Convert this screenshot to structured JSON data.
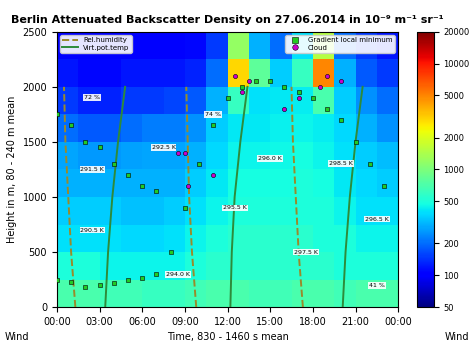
{
  "chart_data": {
    "type": "heatmap",
    "title": "Berlin Attenuated Backscatter Density on 27.06.2014 in 10⁻⁹ m⁻¹ sr⁻¹",
    "x_label": "Time, 830 - 1460 s mean",
    "y_label": "Height in m, 80 - 240 m mean",
    "xlim": [
      0,
      24
    ],
    "ylim": [
      0,
      2500
    ],
    "xticks": [
      {
        "value": 0,
        "label": "00:00"
      },
      {
        "value": 3,
        "label": "03:00"
      },
      {
        "value": 6,
        "label": "06:00"
      },
      {
        "value": 9,
        "label": "09:00"
      },
      {
        "value": 12,
        "label": "12:00"
      },
      {
        "value": 15,
        "label": "15:00"
      },
      {
        "value": 18,
        "label": "18:00"
      },
      {
        "value": 21,
        "label": "21:00"
      },
      {
        "value": 24,
        "label": "00:00"
      }
    ],
    "yticks": [
      0,
      500,
      1000,
      1500,
      2000,
      2500
    ],
    "x_edges": [
      0,
      1.5,
      3,
      4.5,
      6,
      7.5,
      9,
      10.5,
      12,
      13.5,
      15,
      16.5,
      18,
      19.5,
      21,
      22.5,
      24
    ],
    "y_edges": [
      0,
      250,
      500,
      750,
      1000,
      1250,
      1500,
      1750,
      2000,
      2250,
      2500
    ],
    "cells": [
      [
        700,
        700,
        650,
        650,
        600,
        600,
        650,
        700,
        700,
        650,
        650,
        700,
        700,
        650,
        700,
        700
      ],
      [
        500,
        500,
        450,
        450,
        450,
        450,
        500,
        550,
        550,
        550,
        550,
        550,
        550,
        500,
        500,
        500
      ],
      [
        400,
        400,
        400,
        380,
        380,
        400,
        450,
        500,
        550,
        550,
        550,
        550,
        500,
        500,
        450,
        450
      ],
      [
        350,
        350,
        350,
        330,
        330,
        350,
        400,
        450,
        500,
        500,
        500,
        500,
        500,
        450,
        400,
        400
      ],
      [
        300,
        300,
        300,
        300,
        300,
        300,
        350,
        420,
        480,
        480,
        480,
        500,
        480,
        420,
        380,
        350
      ],
      [
        280,
        260,
        260,
        270,
        280,
        280,
        300,
        380,
        450,
        450,
        460,
        480,
        450,
        400,
        350,
        320
      ],
      [
        200,
        180,
        180,
        200,
        220,
        220,
        250,
        350,
        420,
        420,
        440,
        450,
        430,
        380,
        300,
        250
      ],
      [
        150,
        130,
        130,
        150,
        150,
        160,
        180,
        300,
        600,
        400,
        420,
        430,
        700,
        350,
        250,
        200
      ],
      [
        120,
        110,
        110,
        120,
        120,
        120,
        130,
        200,
        3000,
        800,
        350,
        600,
        5000,
        300,
        180,
        150
      ],
      [
        100,
        100,
        100,
        100,
        100,
        100,
        110,
        150,
        1200,
        300,
        200,
        400,
        1500,
        200,
        150,
        120
      ]
    ],
    "colorbar": {
      "range": [
        50,
        20000
      ],
      "ticks": [
        50,
        100,
        200,
        500,
        1000,
        2000,
        5000,
        10000,
        20000
      ],
      "log": true
    },
    "series": [
      {
        "name": "Rel.humidity",
        "type": "line",
        "color": "#9a8a2a",
        "line_style": "dashed",
        "marker": "none",
        "legend": "upper left",
        "x": [
          1.3,
          1.0,
          0.8,
          0.6,
          0.5,
          null,
          9.8,
          9.5,
          9.3,
          9.2,
          9.1,
          null,
          17.3,
          17.0,
          16.8,
          16.6,
          16.5
        ],
        "y": [
          0,
          500,
          1000,
          1500,
          2000,
          null,
          0,
          500,
          1000,
          1500,
          2000,
          null,
          0,
          500,
          1000,
          1500,
          2000
        ]
      },
      {
        "name": "Virt.pot.temp",
        "type": "line",
        "color": "#2e8b3a",
        "line_style": "solid",
        "marker": "none",
        "legend": "upper left",
        "x": [
          3.4,
          3.6,
          3.9,
          4.3,
          4.8,
          null,
          12.2,
          12.3,
          12.5,
          12.9,
          13.4,
          null,
          20.1,
          20.3,
          20.6,
          21.0,
          21.5
        ],
        "y": [
          0,
          500,
          1000,
          1500,
          2000,
          null,
          0,
          500,
          1000,
          1500,
          2000,
          null,
          0,
          500,
          1000,
          1500,
          2000
        ]
      },
      {
        "name": "Gradient local minimum",
        "type": "scatter",
        "color": "#22cc22",
        "line_style": "none",
        "marker": "square",
        "legend": "upper right",
        "x": [
          0,
          1,
          2,
          3,
          4,
          5,
          6,
          7,
          8,
          9,
          10,
          11,
          12,
          13,
          14,
          15,
          16,
          17,
          18,
          19,
          20,
          21,
          22,
          23,
          null,
          0,
          1,
          2,
          3,
          4,
          5,
          6,
          7
        ],
        "y": [
          250,
          230,
          180,
          200,
          220,
          250,
          260,
          300,
          500,
          900,
          1300,
          1650,
          1900,
          2000,
          2050,
          2050,
          2000,
          1950,
          1900,
          1800,
          1700,
          1500,
          1300,
          1100,
          null,
          1750,
          1650,
          1500,
          1450,
          1300,
          1200,
          1100,
          1050
        ]
      },
      {
        "name": "Cloud",
        "type": "scatter",
        "color": "#cc00cc",
        "line_style": "none",
        "marker": "circle",
        "legend": "upper right",
        "x": [
          8.5,
          9,
          9.2,
          11,
          12.5,
          13,
          13.5,
          16,
          17,
          18.5,
          19,
          20
        ],
        "y": [
          1400,
          1400,
          1100,
          1200,
          2100,
          1950,
          2050,
          1800,
          1900,
          2000,
          2100,
          2050
        ]
      }
    ],
    "annotations": [
      {
        "x": 2.5,
        "y": 1250,
        "text": "291.5 K"
      },
      {
        "x": 2.5,
        "y": 700,
        "text": "290.5 K"
      },
      {
        "x": 2.5,
        "y": 1900,
        "text": "72 %"
      },
      {
        "x": 7.5,
        "y": 1450,
        "text": "292.5 K"
      },
      {
        "x": 8.5,
        "y": 300,
        "text": "294.0 K"
      },
      {
        "x": 11,
        "y": 1750,
        "text": "74 %"
      },
      {
        "x": 12.5,
        "y": 900,
        "text": "295.5 K"
      },
      {
        "x": 15,
        "y": 1350,
        "text": "296.0 K"
      },
      {
        "x": 17.5,
        "y": 500,
        "text": "297.5 K"
      },
      {
        "x": 20,
        "y": 1300,
        "text": "298.5 K"
      },
      {
        "x": 22.5,
        "y": 800,
        "text": "296.5 K"
      },
      {
        "x": 22.5,
        "y": 200,
        "text": "41 %"
      }
    ],
    "side_texts": [
      "Wind",
      "Wind"
    ]
  }
}
